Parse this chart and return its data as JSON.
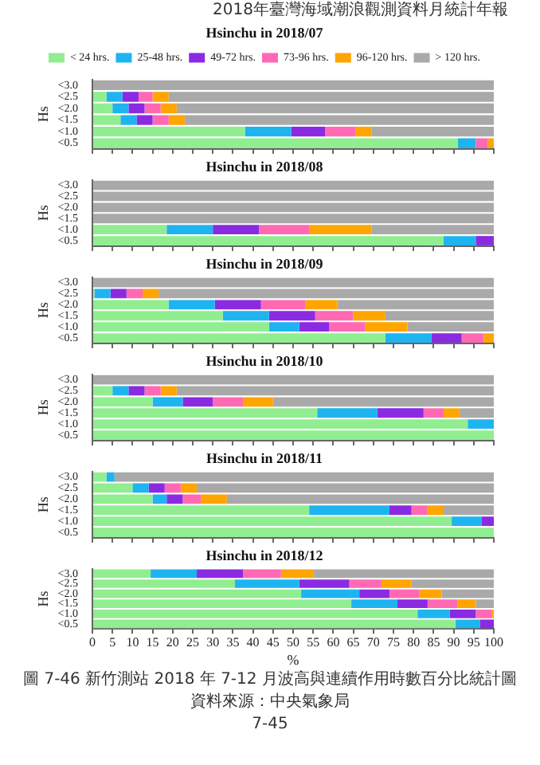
{
  "chart_data": [
    {
      "type": "bar",
      "orientation": "horizontal",
      "stacked": true,
      "title": "Hsinchu in 2018/07",
      "ylabel": "Hs",
      "legend": "top",
      "tick_labels": "y",
      "annotations": [
        "2018年臺灣海域潮浪觀測資料月統計年報"
      ],
      "categories": [
        "<3.0",
        "<2.5",
        "<2.0",
        "<1.5",
        "<1.0",
        "<0.5"
      ],
      "xlim": [
        0,
        100
      ],
      "xticks": [
        0,
        5,
        10,
        15,
        20,
        25,
        30,
        35,
        40,
        45,
        50,
        55,
        60,
        65,
        70,
        75,
        80,
        85,
        90,
        95,
        100
      ],
      "series": [
        {
          "name": "< 24 hrs.",
          "color": "#90ee90",
          "values": [
            0,
            3.5,
            5,
            7,
            38,
            91
          ]
        },
        {
          "name": "25-48 hrs.",
          "color": "#1eb4f0",
          "values": [
            0,
            4,
            4,
            4,
            11.5,
            4.5
          ]
        },
        {
          "name": "49-72 hrs.",
          "color": "#8a2be2",
          "values": [
            0,
            4,
            4,
            4,
            8.5,
            0
          ]
        },
        {
          "name": "73-96 hrs.",
          "color": "#ff69b4",
          "values": [
            0,
            3.5,
            4,
            4,
            7.5,
            3
          ]
        },
        {
          "name": "96-120 hrs.",
          "color": "#ffa500",
          "values": [
            0,
            4,
            4,
            4,
            4,
            1.5
          ]
        },
        {
          "name": "> 120 hrs.",
          "color": "#a9a9a9",
          "values": [
            100,
            81,
            79,
            77,
            30.5,
            0
          ]
        }
      ]
    },
    {
      "type": "bar",
      "orientation": "horizontal",
      "stacked": true,
      "title": "Hsinchu in 2018/08",
      "ylabel": "Hs",
      "tick_labels": "y",
      "categories": [
        "<3.0",
        "<2.5",
        "<2.0",
        "<1.5",
        "<1.0",
        "<0.5"
      ],
      "xlim": [
        0,
        100
      ],
      "xticks": [
        0,
        5,
        10,
        15,
        20,
        25,
        30,
        35,
        40,
        45,
        50,
        55,
        60,
        65,
        70,
        75,
        80,
        85,
        90,
        95,
        100
      ],
      "series": [
        {
          "color": "#90ee90",
          "values": [
            0,
            0,
            0,
            0,
            18.5,
            87.5
          ]
        },
        {
          "color": "#1eb4f0",
          "values": [
            0,
            0,
            0,
            0,
            11.5,
            8
          ]
        },
        {
          "color": "#8a2be2",
          "values": [
            0,
            0,
            0,
            0,
            11.5,
            4.5
          ]
        },
        {
          "color": "#ff69b4",
          "values": [
            0,
            0,
            0,
            0,
            12.5,
            0
          ]
        },
        {
          "color": "#ffa500",
          "values": [
            0,
            0,
            0,
            0,
            15.5,
            0
          ]
        },
        {
          "color": "#a9a9a9",
          "values": [
            100,
            100,
            100,
            100,
            30.5,
            0
          ]
        }
      ]
    },
    {
      "type": "bar",
      "orientation": "horizontal",
      "stacked": true,
      "title": "Hsinchu in 2018/09",
      "ylabel": "Hs",
      "tick_labels": "y",
      "categories": [
        "<3.0",
        "<2.5",
        "<2.0",
        "<1.5",
        "<1.0",
        "<0.5"
      ],
      "xlim": [
        0,
        100
      ],
      "xticks": [
        0,
        5,
        10,
        15,
        20,
        25,
        30,
        35,
        40,
        45,
        50,
        55,
        60,
        65,
        70,
        75,
        80,
        85,
        90,
        95,
        100
      ],
      "series": [
        {
          "color": "#90ee90",
          "values": [
            0,
            0.5,
            19,
            32.5,
            44,
            73
          ]
        },
        {
          "color": "#1eb4f0",
          "values": [
            0,
            4,
            11.5,
            11.5,
            7.5,
            11.5
          ]
        },
        {
          "color": "#8a2be2",
          "values": [
            0,
            4,
            11.5,
            11.5,
            7.5,
            7.5
          ]
        },
        {
          "color": "#ff69b4",
          "values": [
            0,
            4,
            11,
            9.5,
            9,
            5.5
          ]
        },
        {
          "color": "#ffa500",
          "values": [
            0,
            4,
            8,
            8,
            10.5,
            2.5
          ]
        },
        {
          "color": "#a9a9a9",
          "values": [
            100,
            83.5,
            39,
            27,
            21.5,
            0
          ]
        }
      ]
    },
    {
      "type": "bar",
      "orientation": "horizontal",
      "stacked": true,
      "title": "Hsinchu in 2018/10",
      "ylabel": "Hs",
      "tick_labels": "y",
      "categories": [
        "<3.0",
        "<2.5",
        "<2.0",
        "<1.5",
        "<1.0",
        "<0.5"
      ],
      "xlim": [
        0,
        100
      ],
      "xticks": [
        0,
        5,
        10,
        15,
        20,
        25,
        30,
        35,
        40,
        45,
        50,
        55,
        60,
        65,
        70,
        75,
        80,
        85,
        90,
        95,
        100
      ],
      "series": [
        {
          "color": "#90ee90",
          "values": [
            0,
            5,
            15,
            56,
            93.5,
            100
          ]
        },
        {
          "color": "#1eb4f0",
          "values": [
            0,
            4,
            7.5,
            15,
            6.5,
            0
          ]
        },
        {
          "color": "#8a2be2",
          "values": [
            0,
            4,
            7.5,
            11.5,
            0,
            0
          ]
        },
        {
          "color": "#ff69b4",
          "values": [
            0,
            4,
            7.5,
            5,
            0,
            0
          ]
        },
        {
          "color": "#ffa500",
          "values": [
            0,
            4,
            7.5,
            4,
            0,
            0
          ]
        },
        {
          "color": "#a9a9a9",
          "values": [
            100,
            79,
            55,
            8.5,
            0,
            0
          ]
        }
      ]
    },
    {
      "type": "bar",
      "orientation": "horizontal",
      "stacked": true,
      "title": "Hsinchu in 2018/11",
      "ylabel": "Hs",
      "tick_labels": "y",
      "categories": [
        "<3.0",
        "<2.5",
        "<2.0",
        "<1.5",
        "<1.0",
        "<0.5"
      ],
      "xlim": [
        0,
        100
      ],
      "xticks": [
        0,
        5,
        10,
        15,
        20,
        25,
        30,
        35,
        40,
        45,
        50,
        55,
        60,
        65,
        70,
        75,
        80,
        85,
        90,
        95,
        100
      ],
      "series": [
        {
          "color": "#90ee90",
          "values": [
            3.5,
            10,
            15,
            54,
            89.5,
            100
          ]
        },
        {
          "color": "#1eb4f0",
          "values": [
            2,
            4,
            3.5,
            20,
            7.5,
            0
          ]
        },
        {
          "color": "#8a2be2",
          "values": [
            0,
            4,
            4,
            5.5,
            3,
            0
          ]
        },
        {
          "color": "#ff69b4",
          "values": [
            0,
            4,
            4.5,
            4,
            0,
            0
          ]
        },
        {
          "color": "#ffa500",
          "values": [
            0,
            4,
            6.5,
            4,
            0,
            0
          ]
        },
        {
          "color": "#a9a9a9",
          "values": [
            94.5,
            74,
            66.5,
            12.5,
            0,
            0
          ]
        }
      ]
    },
    {
      "type": "bar",
      "orientation": "horizontal",
      "stacked": true,
      "title": "Hsinchu in 2018/12",
      "ylabel": "Hs",
      "xlabel": "%",
      "annotations": [
        "圖 7-46 新竹測站 2018 年 7-12 月波高與連續作用時數百分比統計圖",
        "資料來源：中央氣象局",
        "7-45"
      ],
      "categories": [
        "<3.0",
        "<2.5",
        "<2.0",
        "<1.5",
        "<1.0",
        "<0.5"
      ],
      "xlim": [
        0,
        100
      ],
      "xticks": [
        0,
        5,
        10,
        15,
        20,
        25,
        30,
        35,
        40,
        45,
        50,
        55,
        60,
        65,
        70,
        75,
        80,
        85,
        90,
        95,
        100
      ],
      "series": [
        {
          "color": "#90ee90",
          "values": [
            14.5,
            35.5,
            52,
            64.5,
            81,
            90.5
          ]
        },
        {
          "color": "#1eb4f0",
          "values": [
            11.5,
            16,
            14.5,
            11.5,
            8,
            6
          ]
        },
        {
          "color": "#8a2be2",
          "values": [
            11.5,
            12.5,
            7.5,
            7.5,
            6.5,
            3.5
          ]
        },
        {
          "color": "#ff69b4",
          "values": [
            9.5,
            8,
            7.5,
            7.5,
            4,
            0
          ]
        },
        {
          "color": "#ffa500",
          "values": [
            8,
            7.5,
            5.5,
            4.5,
            0.5,
            0
          ]
        },
        {
          "color": "#a9a9a9",
          "values": [
            45,
            20.5,
            13,
            4.5,
            0,
            0
          ]
        }
      ]
    }
  ]
}
